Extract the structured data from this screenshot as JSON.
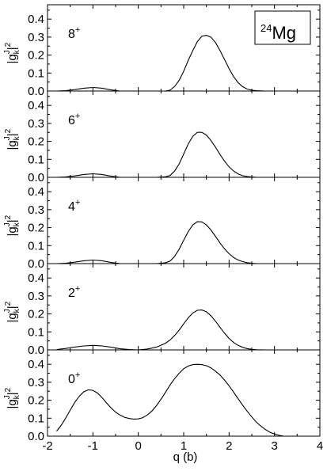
{
  "figure_label": {
    "superscript": "24",
    "text": "Mg"
  },
  "chart_data": {
    "type": "line",
    "xlabel": "q (b)",
    "xlim": [
      -2,
      4
    ],
    "ylim": [
      0,
      0.48
    ],
    "x_ticks": [
      -2,
      -1,
      0,
      1,
      2,
      3,
      4
    ],
    "y_ticks": [
      0.0,
      0.1,
      0.2,
      0.3,
      0.4
    ],
    "ylabel": {
      "base": "|g",
      "sub": "k",
      "sup": "J",
      "exp": "2"
    },
    "panels": [
      {
        "label": "8",
        "label_sup": "+",
        "x": [
          -1.8,
          -1.6,
          -1.4,
          -1.2,
          -1.0,
          -0.8,
          -0.6,
          -0.4,
          -0.2,
          0,
          0.2,
          0.4,
          0.6,
          0.7,
          0.8,
          0.9,
          1.0,
          1.1,
          1.2,
          1.3,
          1.4,
          1.5,
          1.6,
          1.7,
          1.8,
          1.9,
          2.0,
          2.1,
          2.2,
          2.3,
          2.4,
          2.5,
          2.6,
          2.8,
          3.0,
          3.2
        ],
        "y": [
          0.0,
          0.002,
          0.008,
          0.016,
          0.02,
          0.016,
          0.006,
          0.0,
          0.0,
          0.0,
          0.0,
          0.0,
          0.0,
          0.005,
          0.025,
          0.06,
          0.11,
          0.17,
          0.225,
          0.275,
          0.305,
          0.31,
          0.3,
          0.27,
          0.225,
          0.175,
          0.125,
          0.08,
          0.046,
          0.024,
          0.011,
          0.005,
          0.002,
          0.0,
          0.0,
          0.0
        ]
      },
      {
        "label": "6",
        "label_sup": "+",
        "x": [
          -1.8,
          -1.6,
          -1.4,
          -1.2,
          -1.0,
          -0.8,
          -0.6,
          -0.4,
          -0.2,
          0,
          0.2,
          0.4,
          0.6,
          0.7,
          0.8,
          0.9,
          1.0,
          1.1,
          1.2,
          1.3,
          1.4,
          1.5,
          1.6,
          1.7,
          1.8,
          1.9,
          2.0,
          2.1,
          2.2,
          2.3,
          2.4,
          2.5,
          2.6,
          2.8,
          3.0,
          3.2
        ],
        "y": [
          0.0,
          0.002,
          0.008,
          0.016,
          0.02,
          0.016,
          0.006,
          0.0,
          0.0,
          0.0,
          0.0,
          0.0,
          0.003,
          0.01,
          0.035,
          0.075,
          0.13,
          0.185,
          0.228,
          0.25,
          0.25,
          0.235,
          0.205,
          0.168,
          0.127,
          0.09,
          0.058,
          0.035,
          0.019,
          0.009,
          0.004,
          0.002,
          0.0,
          0.0,
          0.0,
          0.0
        ]
      },
      {
        "label": "4",
        "label_sup": "+",
        "x": [
          -1.8,
          -1.6,
          -1.4,
          -1.2,
          -1.0,
          -0.8,
          -0.6,
          -0.4,
          -0.2,
          0,
          0.2,
          0.4,
          0.6,
          0.7,
          0.8,
          0.9,
          1.0,
          1.1,
          1.2,
          1.3,
          1.4,
          1.5,
          1.6,
          1.7,
          1.8,
          1.9,
          2.0,
          2.1,
          2.2,
          2.3,
          2.4,
          2.5,
          2.6,
          2.8,
          3.0,
          3.2
        ],
        "y": [
          0.0,
          0.002,
          0.008,
          0.016,
          0.02,
          0.016,
          0.006,
          0.0,
          0.0,
          0.0,
          0.0,
          0.0,
          0.005,
          0.014,
          0.04,
          0.08,
          0.13,
          0.178,
          0.215,
          0.233,
          0.232,
          0.215,
          0.187,
          0.152,
          0.115,
          0.082,
          0.055,
          0.034,
          0.02,
          0.011,
          0.005,
          0.002,
          0.0,
          0.0,
          0.0,
          0.0
        ]
      },
      {
        "label": "2",
        "label_sup": "+",
        "x": [
          -1.8,
          -1.6,
          -1.4,
          -1.2,
          -1.0,
          -0.8,
          -0.6,
          -0.4,
          -0.2,
          0,
          0.2,
          0.4,
          0.6,
          0.7,
          0.8,
          0.9,
          1.0,
          1.1,
          1.2,
          1.3,
          1.4,
          1.5,
          1.6,
          1.7,
          1.8,
          1.9,
          2.0,
          2.1,
          2.2,
          2.3,
          2.4,
          2.5,
          2.6,
          2.8,
          3.0,
          3.2
        ],
        "y": [
          0.002,
          0.008,
          0.016,
          0.022,
          0.025,
          0.022,
          0.015,
          0.006,
          0.002,
          0.0,
          0.005,
          0.015,
          0.037,
          0.055,
          0.08,
          0.11,
          0.145,
          0.178,
          0.205,
          0.22,
          0.222,
          0.212,
          0.19,
          0.16,
          0.126,
          0.093,
          0.064,
          0.041,
          0.025,
          0.014,
          0.007,
          0.003,
          0.001,
          0.0,
          0.0,
          0.0
        ]
      },
      {
        "label": "0",
        "label_sup": "+",
        "x": [
          -1.8,
          -1.7,
          -1.6,
          -1.5,
          -1.4,
          -1.3,
          -1.2,
          -1.1,
          -1.0,
          -0.9,
          -0.8,
          -0.7,
          -0.6,
          -0.5,
          -0.4,
          -0.3,
          -0.2,
          -0.1,
          0.0,
          0.1,
          0.2,
          0.3,
          0.4,
          0.5,
          0.6,
          0.7,
          0.8,
          0.9,
          1.0,
          1.1,
          1.2,
          1.3,
          1.4,
          1.5,
          1.6,
          1.7,
          1.8,
          1.9,
          2.0,
          2.1,
          2.2,
          2.3,
          2.4,
          2.5,
          2.6,
          2.7,
          2.8,
          2.9,
          3.0,
          3.1,
          3.2
        ],
        "y": [
          0.028,
          0.06,
          0.1,
          0.145,
          0.188,
          0.222,
          0.247,
          0.258,
          0.255,
          0.24,
          0.215,
          0.185,
          0.157,
          0.134,
          0.117,
          0.105,
          0.098,
          0.095,
          0.096,
          0.103,
          0.118,
          0.14,
          0.17,
          0.205,
          0.245,
          0.285,
          0.32,
          0.35,
          0.375,
          0.39,
          0.398,
          0.4,
          0.398,
          0.392,
          0.38,
          0.362,
          0.34,
          0.312,
          0.28,
          0.245,
          0.208,
          0.172,
          0.138,
          0.107,
          0.079,
          0.056,
          0.037,
          0.022,
          0.012,
          0.005,
          0.0
        ]
      }
    ]
  }
}
